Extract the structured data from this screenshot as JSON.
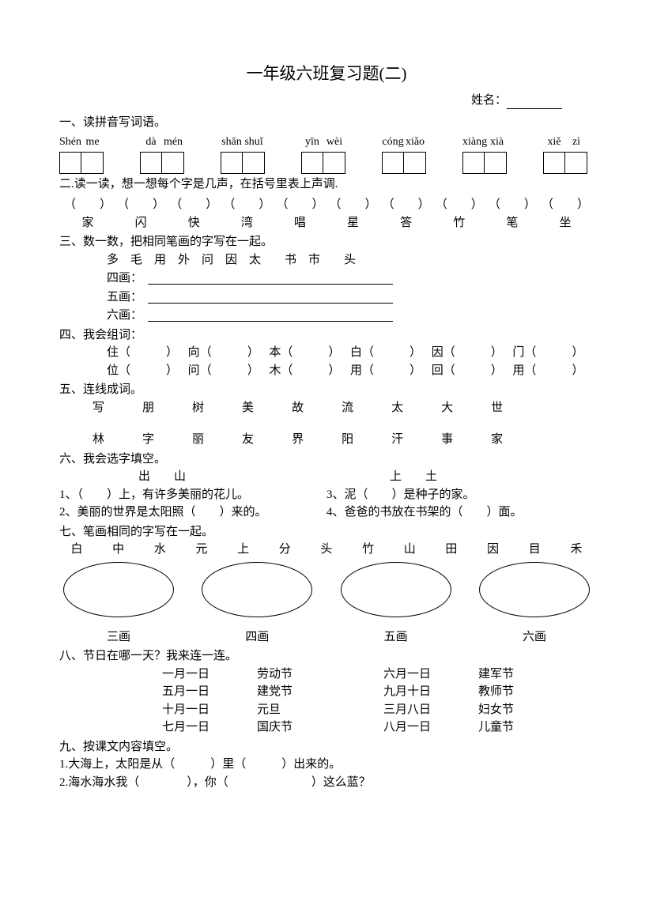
{
  "title": "一年级六班复习题(二)",
  "name_label": "姓名：",
  "q1": {
    "heading": "一、读拼音写词语。",
    "groups": [
      [
        "Shén",
        "me"
      ],
      [
        "dà",
        "mén"
      ],
      [
        "shān",
        "shuǐ"
      ],
      [
        "yīn",
        "wèi"
      ],
      [
        "cóng",
        "xiǎo"
      ],
      [
        "xiàng",
        "xià"
      ],
      [
        "xiě",
        "zì"
      ]
    ]
  },
  "q2": {
    "heading": "二.读一读，想一想每个字是几声，在括号里表上声调.",
    "chars": [
      "家",
      "闪",
      "快",
      "湾",
      "唱",
      "星",
      "答",
      "竹",
      "笔",
      "坐"
    ]
  },
  "q3": {
    "heading": "三、数一数，把相同笔画的字写在一起。",
    "chars": "多　毛　用　外　问　因　太　　书　市　　头",
    "lines": [
      "四画：",
      "五画：",
      "六画："
    ]
  },
  "q4": {
    "heading": "四、我会组词：",
    "pairs": [
      [
        "住",
        "向",
        "本",
        "白",
        "因",
        "门"
      ],
      [
        "位",
        "问",
        "木",
        "用",
        "回",
        "用"
      ]
    ]
  },
  "q5": {
    "heading": "五、连线成词。",
    "top": [
      "写",
      "朋",
      "树",
      "美",
      "故",
      "流",
      "太",
      "大",
      "世"
    ],
    "bottom": [
      "林",
      "字",
      "丽",
      "友",
      "界",
      "阳",
      "汗",
      "事",
      "家"
    ]
  },
  "q6": {
    "heading": "六、我会选字填空。",
    "set1": "出　　山",
    "set2": "上　　土",
    "l1": "1、（　　）上，有许多美丽的花儿。",
    "r1": "3、泥（　　）是种子的家。",
    "l2": "2、美丽的世界是太阳照（　　）来的。",
    "r2": "4、爸爸的书放在书架的（　　）面。"
  },
  "q7": {
    "heading": "七、笔画相同的字写在一起。",
    "chars": [
      "白",
      "中",
      "水",
      "元",
      "上",
      "分",
      "头",
      "竹",
      "山",
      "田",
      "因",
      "目",
      "禾"
    ],
    "labels": [
      "三画",
      "四画",
      "五画",
      "六画"
    ]
  },
  "q8": {
    "heading": "八、节日在哪一天？我来连一连。",
    "left_dates": [
      "一月一日",
      "五月一日",
      "十月一日",
      "七月一日"
    ],
    "left_fest": [
      "劳动节",
      "建党节",
      "元旦",
      "国庆节"
    ],
    "right_dates": [
      "六月一日",
      "九月十日",
      "三月八日",
      "八月一日"
    ],
    "right_fest": [
      "建军节",
      "教师节",
      "妇女节",
      "儿童节"
    ]
  },
  "q9": {
    "heading": "九、按课文内容填空。",
    "l1": "1.大海上，太阳是从（　　　）里（　　　）出来的。",
    "l2": "2.海水海水我（　　　　），你（　　　　　　　）这么蓝？"
  },
  "colors": {
    "text": "#000000",
    "background": "#ffffff",
    "border": "#000000"
  }
}
